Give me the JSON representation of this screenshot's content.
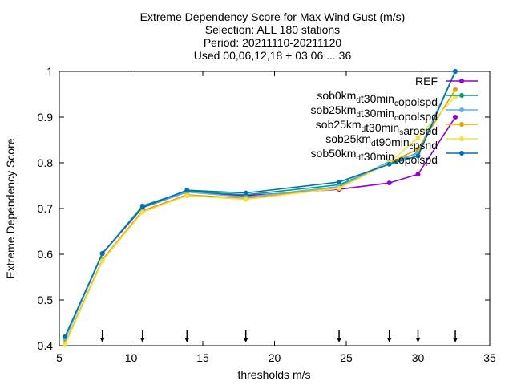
{
  "chart_data": {
    "type": "line",
    "title": [
      "Extreme Dependency Score  for Max Wind Gust (m/s)",
      "Selection: ALL    180 stations",
      "Period: 20211110-20211120",
      "Used 00,06,12,18 + 03 06 ... 36"
    ],
    "xlabel": "thresholds m/s",
    "ylabel": "Extreme Dependency Score",
    "xlim": [
      5,
      35
    ],
    "ylim": [
      0.4,
      1.0
    ],
    "xticks": [
      5,
      10,
      15,
      20,
      25,
      30,
      35
    ],
    "yticks": [
      0.4,
      0.5,
      0.6,
      0.7,
      0.8,
      0.9,
      1.0
    ],
    "ytick_labels": [
      "0.4",
      "0.5",
      "0.6",
      "0.7",
      "0.8",
      "0.9",
      "1"
    ],
    "threshold_markers": [
      8.0,
      10.8,
      13.9,
      18.0,
      24.5,
      28.0,
      30.0,
      32.6
    ],
    "legend_position": "top-right",
    "x": [
      5.4,
      8.0,
      10.8,
      13.9,
      18.0,
      24.5,
      28.0,
      30.0,
      32.6
    ],
    "series": [
      {
        "legend": [
          [
            "REF",
            "",
            ""
          ]
        ],
        "color": "#9400d3",
        "values": [
          0.415,
          0.601,
          0.702,
          0.736,
          0.728,
          0.742,
          0.756,
          0.775,
          0.9
        ]
      },
      {
        "legend": [
          [
            "sob0km",
            "d",
            "sub"
          ],
          [
            "t30min",
            "c",
            "sub"
          ],
          [
            "opolspd",
            "",
            ""
          ]
        ],
        "color": "#009e73",
        "values": [
          0.415,
          0.601,
          0.706,
          0.738,
          0.73,
          0.752,
          0.798,
          0.822,
          1.0
        ]
      },
      {
        "legend": [
          [
            "sob25km",
            "d",
            "sub"
          ],
          [
            "t30min",
            "c",
            "sub"
          ],
          [
            "opolspd",
            "",
            ""
          ]
        ],
        "color": "#56b4e9",
        "values": [
          0.415,
          0.601,
          0.703,
          0.736,
          0.725,
          0.748,
          0.803,
          0.82,
          1.0
        ]
      },
      {
        "legend": [
          [
            "sob25km",
            "d",
            "sub"
          ],
          [
            "t30min",
            "s",
            "sub"
          ],
          [
            "arospd",
            "",
            ""
          ]
        ],
        "color": "#e69f00",
        "values": [
          0.405,
          0.588,
          0.695,
          0.73,
          0.722,
          0.745,
          0.8,
          0.83,
          0.96
        ]
      },
      {
        "legend": [
          [
            "sob25km",
            "d",
            "sub"
          ],
          [
            "t90min",
            "c",
            "sub"
          ],
          [
            "psnd",
            "",
            ""
          ]
        ],
        "color": "#f0e442",
        "values": [
          0.402,
          0.585,
          0.692,
          0.728,
          0.72,
          0.744,
          0.8,
          0.855,
          0.945
        ]
      },
      {
        "legend": [
          [
            "sob50km",
            "d",
            "sub"
          ],
          [
            "t30min",
            "c",
            "sub"
          ],
          [
            "opolspd",
            "",
            ""
          ]
        ],
        "color": "#0072b2",
        "values": [
          0.42,
          0.602,
          0.703,
          0.74,
          0.734,
          0.758,
          0.797,
          0.815,
          1.0
        ]
      }
    ]
  }
}
